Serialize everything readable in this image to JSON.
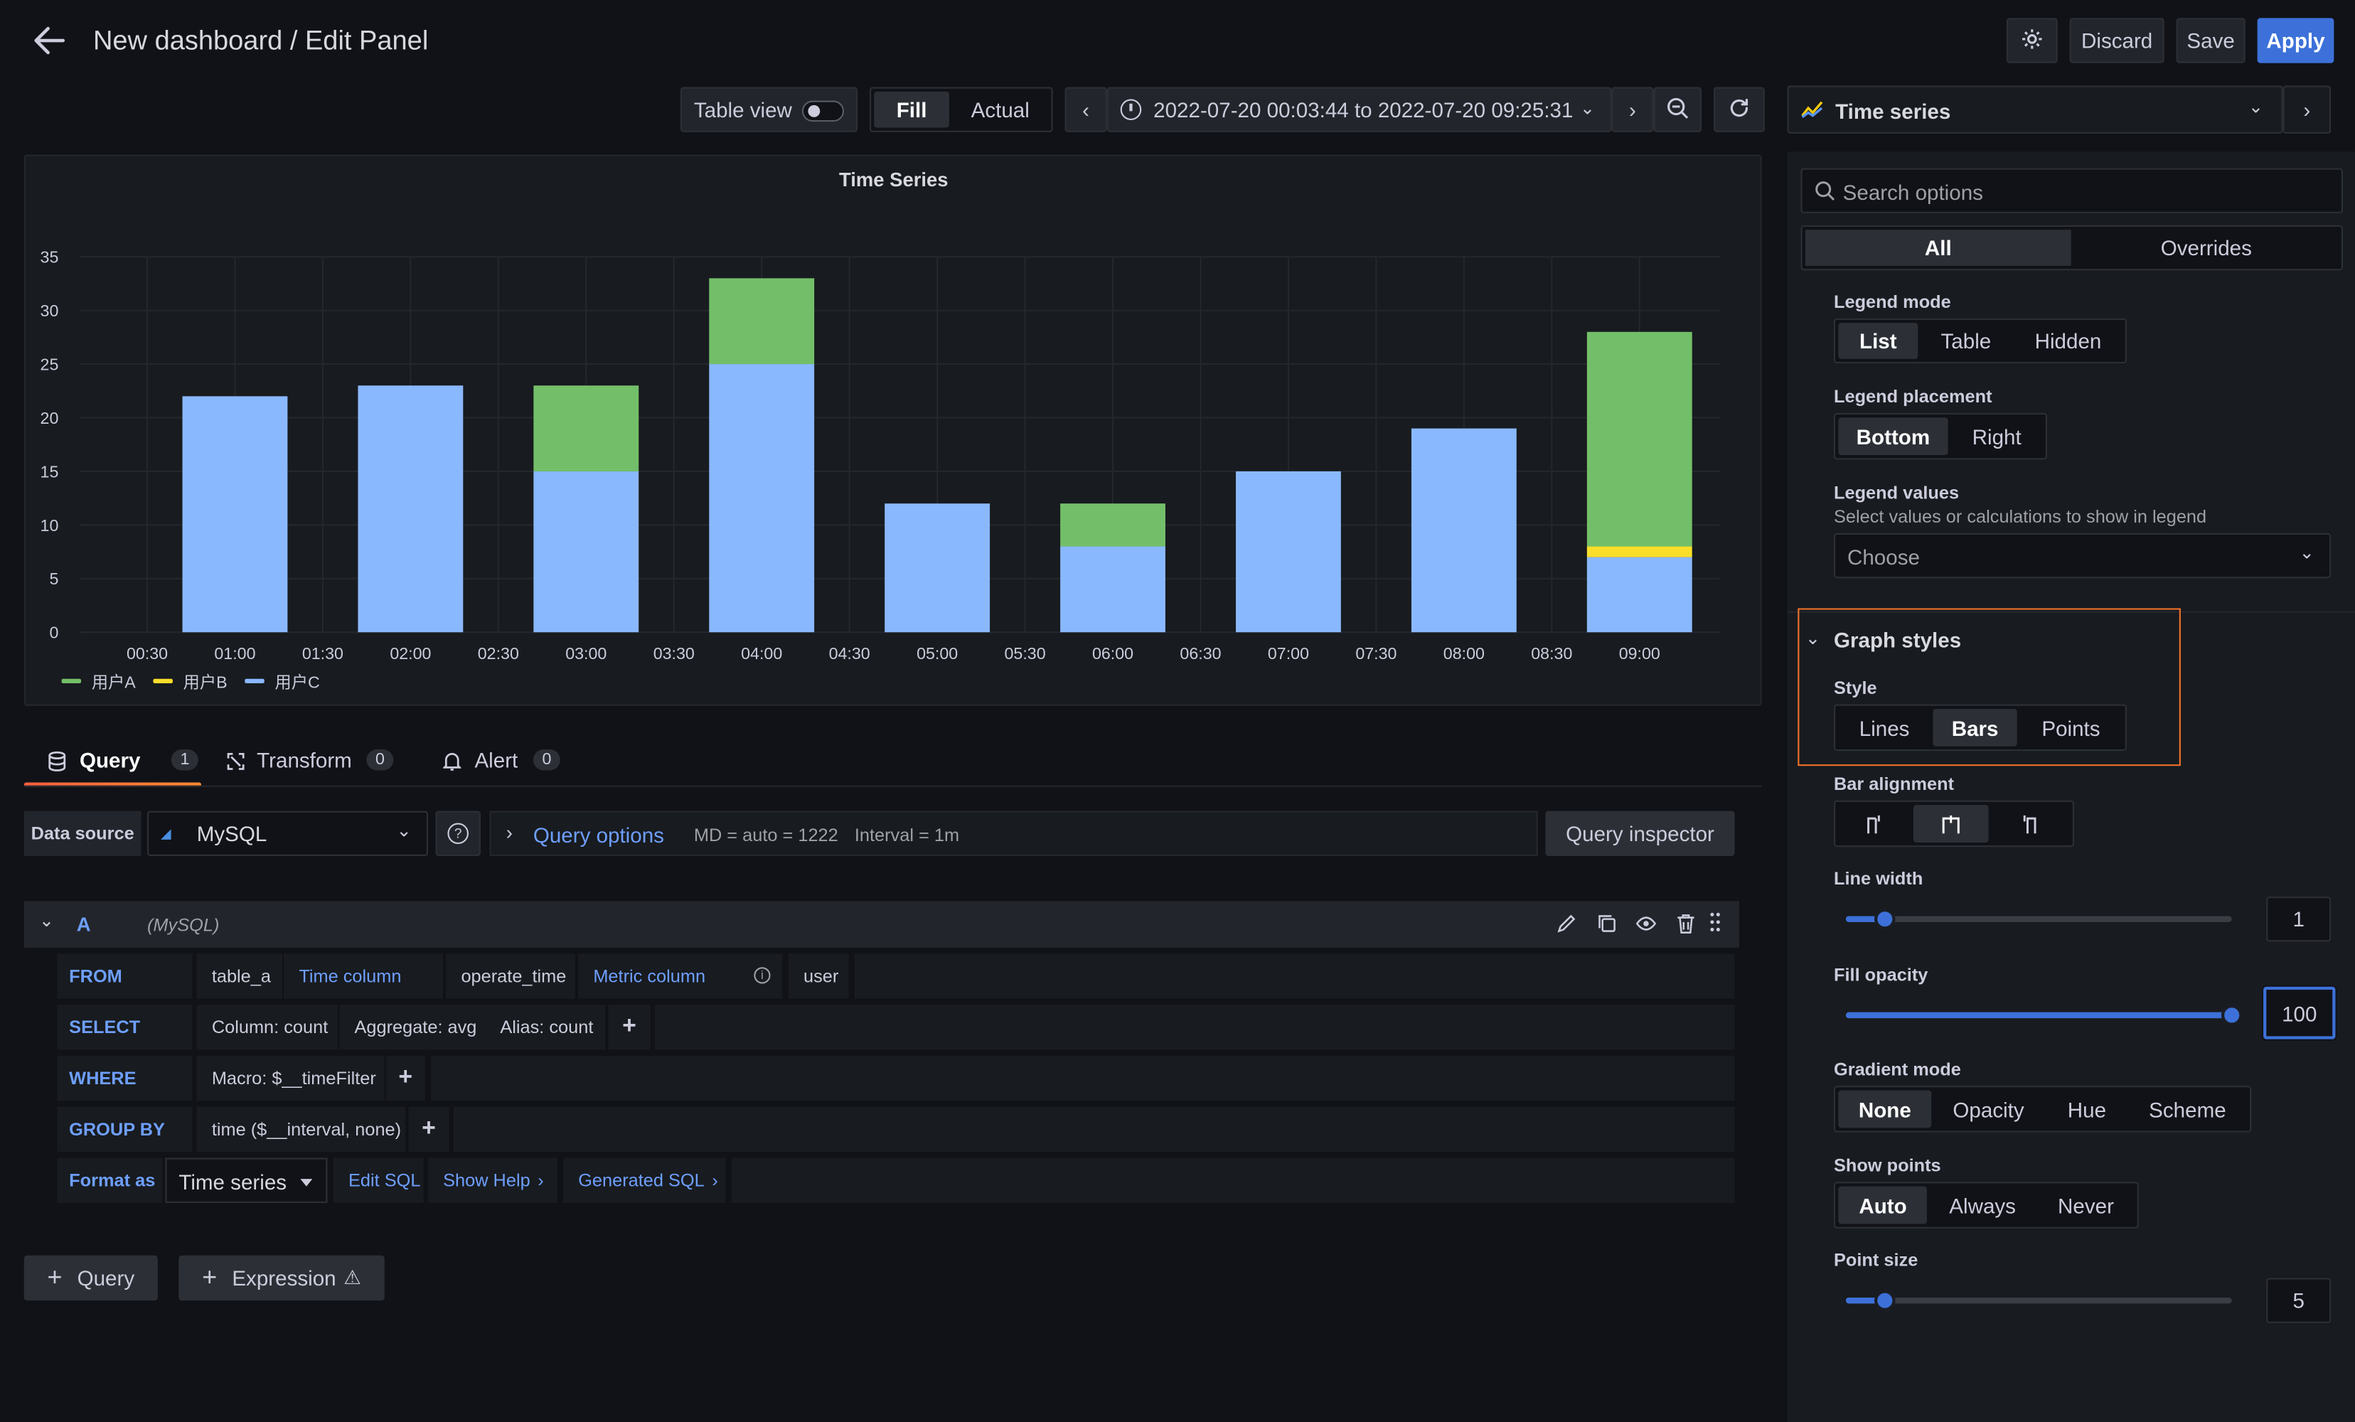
{
  "header": {
    "title": "New dashboard / Edit Panel",
    "discard": "Discard",
    "save": "Save",
    "apply": "Apply"
  },
  "toolbar": {
    "table_view": "Table view",
    "fill": "Fill",
    "actual": "Actual",
    "time_range": "2022-07-20 00:03:44 to 2022-07-20 09:25:31"
  },
  "viz_picker": {
    "label": "Time series"
  },
  "options": {
    "search_placeholder": "Search options",
    "tab_all": "All",
    "tab_overrides": "Overrides",
    "legend_mode": {
      "label": "Legend mode",
      "options": [
        "List",
        "Table",
        "Hidden"
      ],
      "selected": "List"
    },
    "legend_placement": {
      "label": "Legend placement",
      "options": [
        "Bottom",
        "Right"
      ],
      "selected": "Bottom"
    },
    "legend_values": {
      "label": "Legend values",
      "description": "Select values or calculations to show in legend",
      "placeholder": "Choose"
    },
    "graph_styles": {
      "title": "Graph styles"
    },
    "style": {
      "label": "Style",
      "options": [
        "Lines",
        "Bars",
        "Points"
      ],
      "selected": "Bars"
    },
    "bar_alignment": {
      "label": "Bar alignment"
    },
    "line_width": {
      "label": "Line width",
      "value": "1",
      "fraction": 0.1
    },
    "fill_opacity": {
      "label": "Fill opacity",
      "value": "100",
      "fraction": 1.0
    },
    "gradient_mode": {
      "label": "Gradient mode",
      "options": [
        "None",
        "Opacity",
        "Hue",
        "Scheme"
      ],
      "selected": "None"
    },
    "show_points": {
      "label": "Show points",
      "options": [
        "Auto",
        "Always",
        "Never"
      ],
      "selected": "Auto"
    },
    "point_size": {
      "label": "Point size",
      "value": "5",
      "fraction": 0.1
    }
  },
  "query_tabs": [
    {
      "label": "Query",
      "count": "1"
    },
    {
      "label": "Transform",
      "count": "0"
    },
    {
      "label": "Alert",
      "count": "0"
    }
  ],
  "datasource": {
    "label": "Data source",
    "value": "MySQL",
    "query_options": "Query options",
    "md": "MD = auto = 1222",
    "interval": "Interval = 1m",
    "inspector": "Query inspector"
  },
  "query": {
    "ref": "A",
    "ds": "(MySQL)",
    "from_kw": "FROM",
    "table": "table_a",
    "time_col_label": "Time column",
    "time_col": "operate_time",
    "metric_label": "Metric column",
    "metric": "user",
    "select_kw": "SELECT",
    "col": "Column: count",
    "agg": "Aggregate: avg",
    "alias": "Alias: count",
    "where_kw": "WHERE",
    "macro": "Macro: $__timeFilter",
    "group_kw": "GROUP BY",
    "group": "time ($__interval, none)",
    "format_kw": "Format as",
    "format": "Time series",
    "edit_sql": "Edit SQL",
    "show_help": "Show Help",
    "generated_sql": "Generated SQL"
  },
  "add_query": "Query",
  "add_expression": "Expression",
  "chart_data": {
    "type": "bar",
    "title": "Time Series",
    "stacked": true,
    "xticks": [
      "00:30",
      "01:00",
      "01:30",
      "02:00",
      "02:30",
      "03:00",
      "03:30",
      "04:00",
      "04:30",
      "05:00",
      "05:30",
      "06:00",
      "06:30",
      "07:00",
      "07:30",
      "08:00",
      "08:30",
      "09:00"
    ],
    "categories": [
      "01:00",
      "02:00",
      "03:00",
      "04:00",
      "05:00",
      "06:00",
      "07:00",
      "08:00",
      "09:00"
    ],
    "yticks": [
      "0",
      "5",
      "10",
      "15",
      "20",
      "25",
      "30",
      "35"
    ],
    "ylim": [
      0,
      35
    ],
    "series": [
      {
        "name": "用户C",
        "color": "#8ab8ff",
        "values": [
          22,
          23,
          15,
          25,
          12,
          8,
          15,
          19,
          7
        ]
      },
      {
        "name": "用户B",
        "color": "#fade2a",
        "values": [
          0,
          0,
          0,
          0,
          0,
          0,
          0,
          0,
          1
        ]
      },
      {
        "name": "用户A",
        "color": "#73bf69",
        "values": [
          0,
          0,
          8,
          8,
          0,
          4,
          0,
          0,
          20
        ]
      }
    ],
    "legend": [
      "用户A",
      "用户B",
      "用户C"
    ],
    "legend_placement": "bottom-left"
  }
}
